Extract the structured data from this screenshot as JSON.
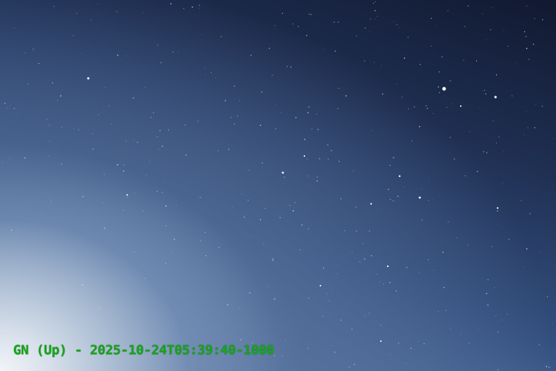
{
  "caption": "GN (Up) - 2025-10-24T05:39:40-1000",
  "colors": {
    "caption_text": "#18a41c",
    "sky_dark": "#111930",
    "sky_mid": "#34507f",
    "horizon_glow": "#f2f5f9"
  }
}
